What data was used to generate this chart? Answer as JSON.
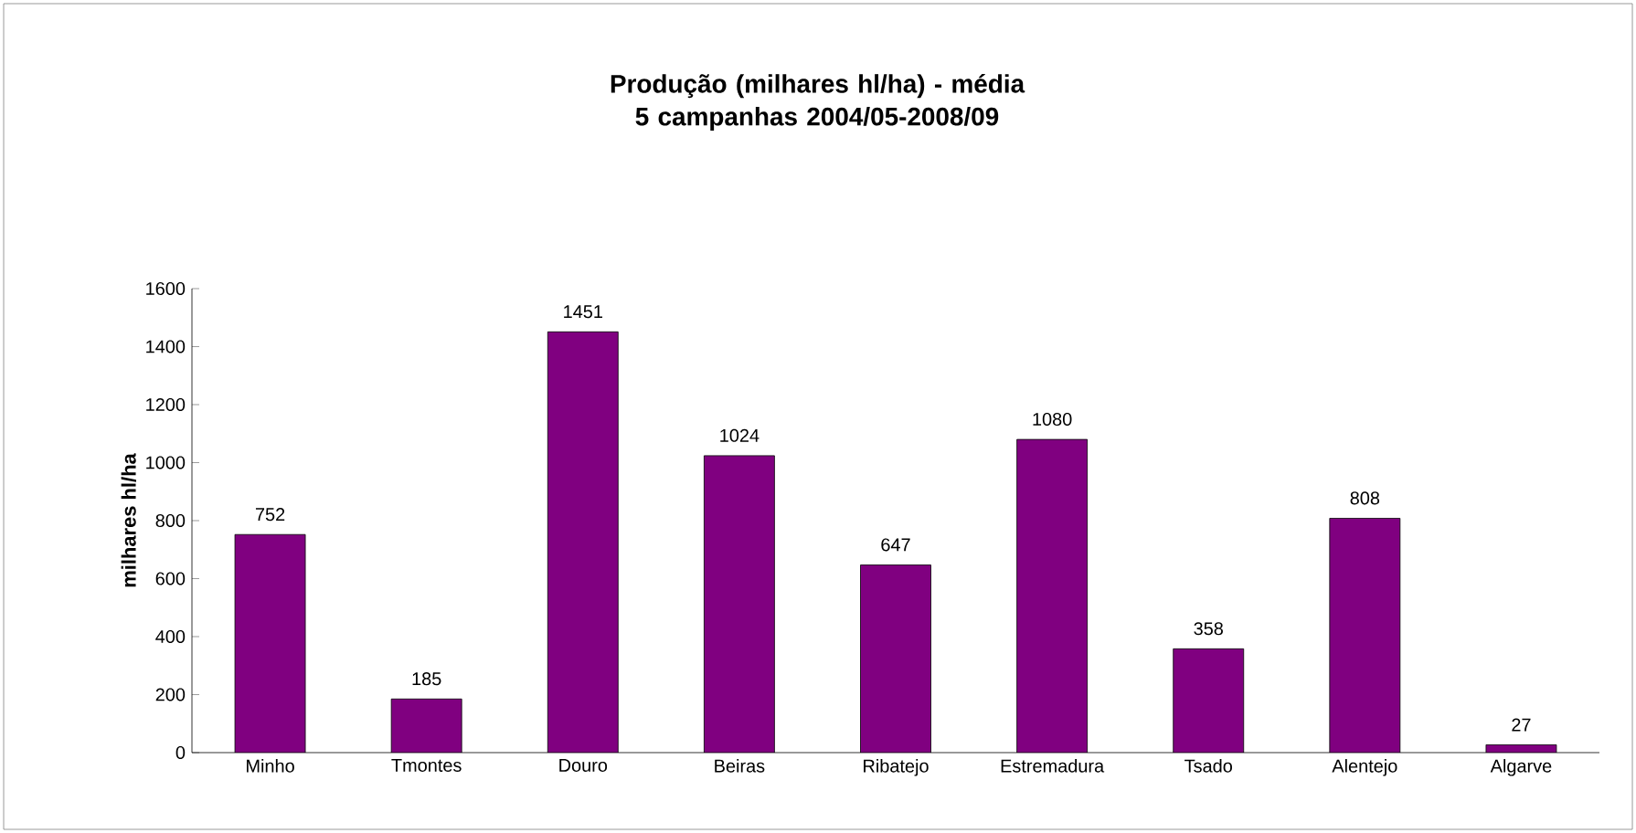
{
  "chart_data": {
    "type": "bar",
    "title": "Produção (milhares hl/ha) - média 5 campanhas 2004/05-2008/09",
    "ylabel": "milhares hl/ha",
    "categories": [
      "Minho",
      "Tmontes",
      "Douro",
      "Beiras",
      "Ribatejo",
      "Estremadura",
      "Tsado",
      "Alentejo",
      "Algarve"
    ],
    "values": [
      752,
      185,
      1451,
      1024,
      647,
      1080,
      358,
      808,
      27
    ],
    "color": "#800080",
    "ylim": [
      0,
      1600
    ],
    "yticks": [
      0,
      200,
      400,
      600,
      800,
      1000,
      1200,
      1400,
      1600
    ],
    "data_labels": true,
    "grid": false
  }
}
